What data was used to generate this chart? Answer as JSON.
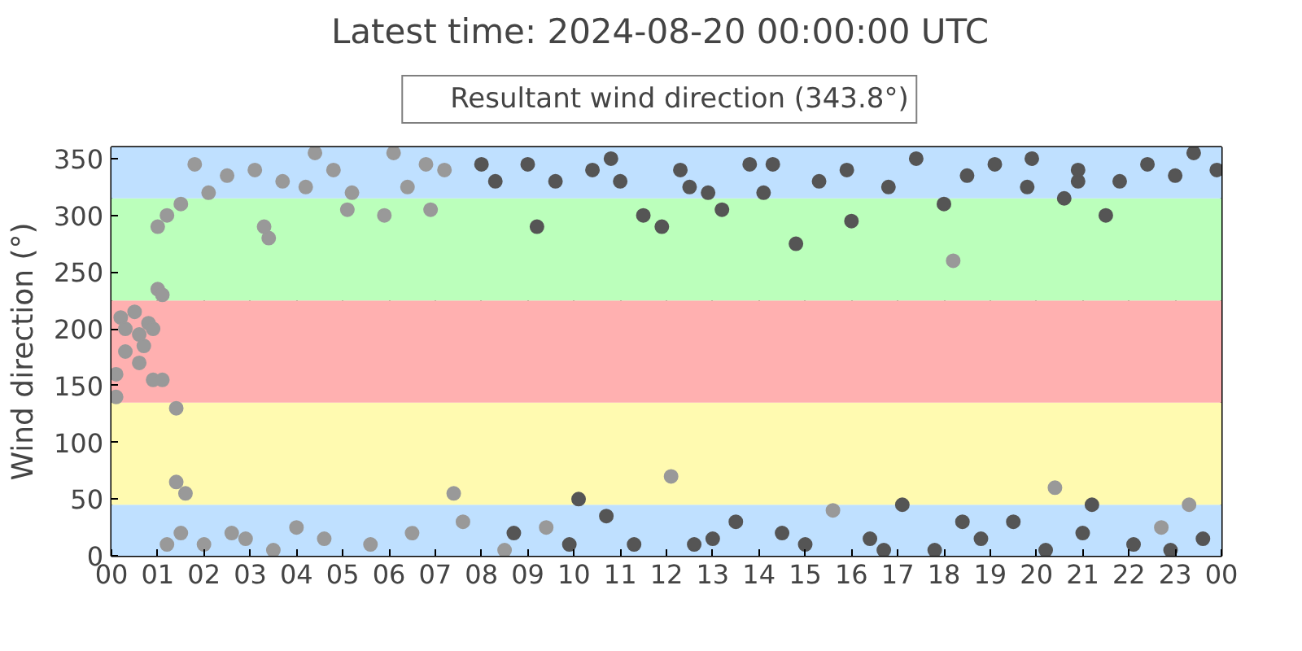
{
  "chart_data": {
    "type": "scatter",
    "title": "Latest time: 2024-08-20 00:00:00 UTC",
    "ylabel": "Wind direction (°)",
    "xlim": [
      0,
      24
    ],
    "ylim": [
      0,
      360
    ],
    "xticks": [
      {
        "value": 0,
        "label": "00"
      },
      {
        "value": 1,
        "label": "01"
      },
      {
        "value": 2,
        "label": "02"
      },
      {
        "value": 3,
        "label": "03"
      },
      {
        "value": 4,
        "label": "04"
      },
      {
        "value": 5,
        "label": "05"
      },
      {
        "value": 6,
        "label": "06"
      },
      {
        "value": 7,
        "label": "07"
      },
      {
        "value": 8,
        "label": "08"
      },
      {
        "value": 9,
        "label": "09"
      },
      {
        "value": 10,
        "label": "10"
      },
      {
        "value": 11,
        "label": "11"
      },
      {
        "value": 12,
        "label": "12"
      },
      {
        "value": 13,
        "label": "13"
      },
      {
        "value": 14,
        "label": "14"
      },
      {
        "value": 15,
        "label": "15"
      },
      {
        "value": 16,
        "label": "16"
      },
      {
        "value": 17,
        "label": "17"
      },
      {
        "value": 18,
        "label": "18"
      },
      {
        "value": 19,
        "label": "19"
      },
      {
        "value": 20,
        "label": "20"
      },
      {
        "value": 21,
        "label": "21"
      },
      {
        "value": 22,
        "label": "22"
      },
      {
        "value": 23,
        "label": "23"
      },
      {
        "value": 24,
        "label": "00"
      }
    ],
    "yticks": [
      0,
      50,
      100,
      150,
      200,
      250,
      300,
      350
    ],
    "grid": true,
    "legend": "top",
    "marker": "circle",
    "bands": [
      {
        "axis": "y",
        "from": 0,
        "to": 45,
        "color": "#bfe0ff"
      },
      {
        "axis": "y",
        "from": 45,
        "to": 135,
        "color": "#fffab0"
      },
      {
        "axis": "y",
        "from": 135,
        "to": 225,
        "color": "#ffb0b0"
      },
      {
        "axis": "y",
        "from": 225,
        "to": 315,
        "color": "#bbffbb"
      },
      {
        "axis": "y",
        "from": 315,
        "to": 360,
        "color": "#bfe0ff"
      }
    ],
    "series": [
      {
        "name": "Resultant wind direction (343.8°)",
        "color": "#999999",
        "x": [
          0.1,
          0.1,
          0.2,
          0.3,
          0.5,
          0.6,
          0.7,
          0.8,
          0.9,
          0.6,
          0.3,
          1.0,
          1.1,
          0.9,
          1.1,
          1.4,
          1.4,
          1.6,
          1.5,
          1.2,
          1.0,
          1.2,
          1.5,
          1.8,
          2.1,
          2.5,
          2.6,
          2.9,
          3.1,
          3.3,
          3.4,
          3.7,
          4.2,
          4.4,
          4.8,
          5.1,
          5.2,
          5.6,
          5.9,
          6.1,
          6.4,
          6.9,
          7.2,
          7.4,
          7.6,
          2.0,
          3.5,
          4.0,
          4.6,
          6.5,
          6.8,
          8.5,
          9.4,
          12.1,
          15.6,
          18.2,
          20.4,
          22.7,
          23.3
        ],
        "values": [
          140,
          160,
          210,
          200,
          215,
          195,
          185,
          205,
          200,
          170,
          180,
          235,
          230,
          155,
          155,
          130,
          65,
          55,
          20,
          10,
          290,
          300,
          310,
          345,
          320,
          335,
          20,
          15,
          340,
          290,
          280,
          330,
          325,
          355,
          340,
          305,
          320,
          10,
          300,
          355,
          325,
          305,
          340,
          55,
          30,
          10,
          5,
          25,
          15,
          20,
          345,
          5,
          25,
          70,
          40,
          260,
          60,
          25,
          45
        ]
      },
      {
        "color": "#555555",
        "x": [
          8.0,
          8.3,
          8.7,
          9.0,
          9.2,
          9.6,
          9.9,
          10.1,
          10.4,
          10.7,
          11.0,
          11.3,
          11.5,
          11.9,
          12.3,
          12.6,
          12.9,
          13.2,
          13.5,
          13.8,
          14.1,
          14.3,
          14.5,
          14.8,
          15.0,
          15.3,
          15.9,
          16.0,
          16.4,
          16.8,
          17.1,
          17.4,
          17.8,
          18.0,
          18.5,
          18.8,
          19.1,
          19.5,
          19.8,
          20.2,
          20.6,
          20.9,
          21.2,
          21.5,
          21.8,
          22.1,
          22.4,
          23.0,
          23.6,
          23.9,
          10.8,
          12.5,
          13.0,
          16.7,
          18.4,
          19.9,
          20.9,
          21.0,
          22.9,
          23.4
        ],
        "values": [
          345,
          330,
          20,
          345,
          290,
          330,
          10,
          50,
          340,
          35,
          330,
          10,
          300,
          290,
          340,
          10,
          320,
          305,
          30,
          345,
          320,
          345,
          20,
          275,
          10,
          330,
          340,
          295,
          15,
          325,
          45,
          350,
          5,
          310,
          335,
          15,
          345,
          30,
          325,
          5,
          315,
          340,
          45,
          300,
          330,
          10,
          345,
          335,
          15,
          340,
          350,
          325,
          15,
          5,
          30,
          350,
          330,
          20,
          5,
          355
        ]
      }
    ]
  }
}
